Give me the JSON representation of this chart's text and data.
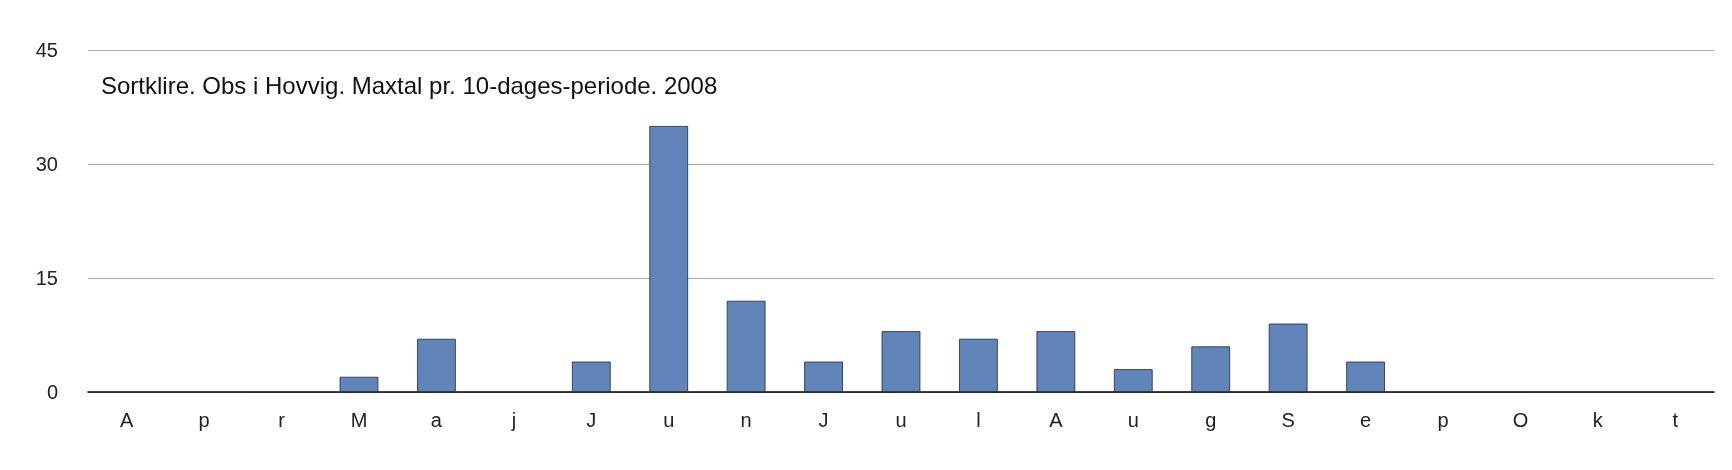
{
  "chart_data": {
    "type": "bar",
    "title": "Sortklire. Obs i Hovvig. Maxtal pr. 10-dages-periode. 2008",
    "categories": [
      "A",
      "p",
      "r",
      "M",
      "a",
      "j",
      "J",
      "u",
      "n",
      "J",
      "u",
      "l",
      "A",
      "u",
      "g",
      "S",
      "e",
      "p",
      "O",
      "k",
      "t"
    ],
    "values": [
      0,
      0,
      0,
      2,
      7,
      0,
      4,
      35,
      12,
      4,
      8,
      7,
      8,
      3,
      6,
      9,
      4,
      0,
      0,
      0,
      0
    ],
    "color": "#6185b8",
    "ylim": [
      0,
      45
    ],
    "yticks": [
      0,
      15,
      30,
      45
    ],
    "grid": "y"
  }
}
